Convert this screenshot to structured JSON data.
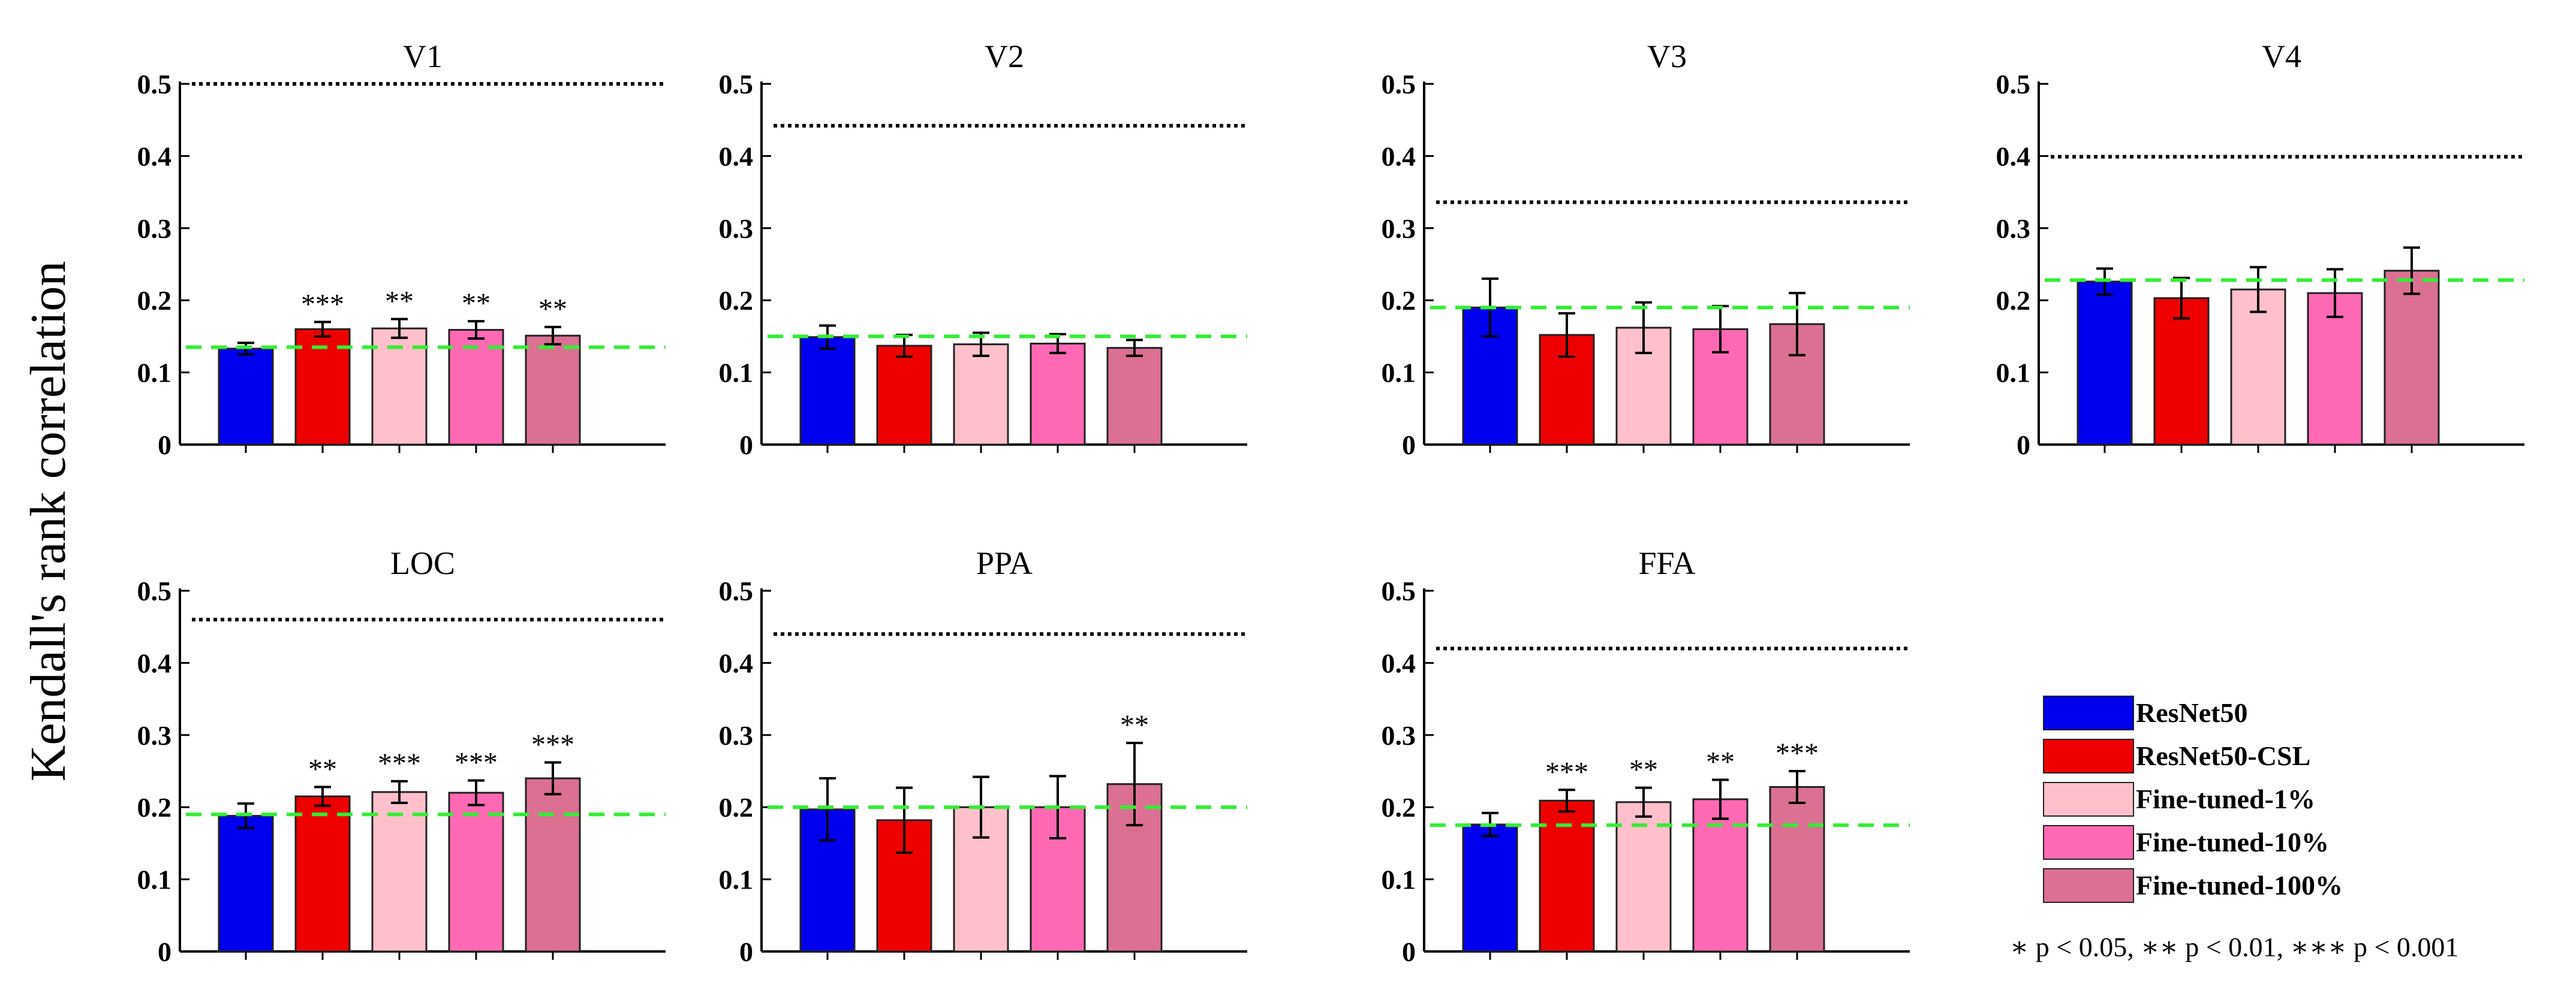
{
  "colors": {
    "ResNet50": "#0000ee",
    "ResNet50-CSL": "#ee0000",
    "Fine-tuned-1%": "#ffc0cb",
    "Fine-tuned-10%": "#ff69b4",
    "Fine-tuned-100%": "#db7093",
    "baseline_line": "#33ee33",
    "ceiling_line": "#000000"
  },
  "legend": {
    "entries": [
      "ResNet50",
      "ResNet50-CSL",
      "Fine-tuned-1%",
      "Fine-tuned-10%",
      "Fine-tuned-100%"
    ],
    "footnote": "∗ p < 0.05,  ∗∗ p < 0.01,  ∗∗∗ p < 0.001"
  },
  "chart_data": {
    "type": "bar",
    "ylabel": "Kendall's rank correlation",
    "ylim": [
      0,
      0.5
    ],
    "yticks": [
      "0",
      "0.1",
      "0.2",
      "0.3",
      "0.4",
      "0.5"
    ],
    "series_names": [
      "ResNet50",
      "ResNet50-CSL",
      "Fine-tuned-1%",
      "Fine-tuned-10%",
      "Fine-tuned-100%"
    ],
    "legend_position": "bottom-right",
    "grid": false,
    "panels": [
      {
        "title": "V1",
        "values": [
          0.133,
          0.16,
          0.161,
          0.159,
          0.151
        ],
        "errors": [
          0.008,
          0.01,
          0.013,
          0.012,
          0.012
        ],
        "significance": [
          "",
          "***",
          "**",
          "**",
          "**"
        ],
        "baseline": 0.135,
        "ceiling": 0.5
      },
      {
        "title": "V2",
        "values": [
          0.149,
          0.137,
          0.139,
          0.14,
          0.134
        ],
        "errors": [
          0.016,
          0.015,
          0.016,
          0.013,
          0.011
        ],
        "significance": [
          "",
          "",
          "",
          "",
          ""
        ],
        "baseline": 0.15,
        "ceiling": 0.442
      },
      {
        "title": "V3",
        "values": [
          0.19,
          0.152,
          0.162,
          0.16,
          0.167
        ],
        "errors": [
          0.04,
          0.03,
          0.035,
          0.032,
          0.043
        ],
        "significance": [
          "",
          "",
          "",
          "",
          ""
        ],
        "baseline": 0.19,
        "ceiling": 0.336
      },
      {
        "title": "V4",
        "values": [
          0.226,
          0.203,
          0.215,
          0.21,
          0.241
        ],
        "errors": [
          0.018,
          0.028,
          0.031,
          0.033,
          0.032
        ],
        "significance": [
          "",
          "",
          "",
          "",
          ""
        ],
        "baseline": 0.228,
        "ceiling": 0.399
      },
      {
        "title": "LOC",
        "values": [
          0.188,
          0.215,
          0.221,
          0.22,
          0.24
        ],
        "errors": [
          0.017,
          0.013,
          0.015,
          0.017,
          0.022
        ],
        "significance": [
          "",
          "**",
          "***",
          "***",
          "***"
        ],
        "baseline": 0.19,
        "ceiling": 0.46
      },
      {
        "title": "PPA",
        "values": [
          0.197,
          0.182,
          0.2,
          0.2,
          0.232
        ],
        "errors": [
          0.043,
          0.045,
          0.042,
          0.043,
          0.057
        ],
        "significance": [
          "",
          "",
          "",
          "",
          "**"
        ],
        "baseline": 0.2,
        "ceiling": 0.44
      },
      {
        "title": "FFA",
        "values": [
          0.176,
          0.209,
          0.207,
          0.211,
          0.228
        ],
        "errors": [
          0.016,
          0.015,
          0.02,
          0.027,
          0.022
        ],
        "significance": [
          "",
          "***",
          "**",
          "**",
          "***"
        ],
        "baseline": 0.175,
        "ceiling": 0.42
      }
    ]
  }
}
